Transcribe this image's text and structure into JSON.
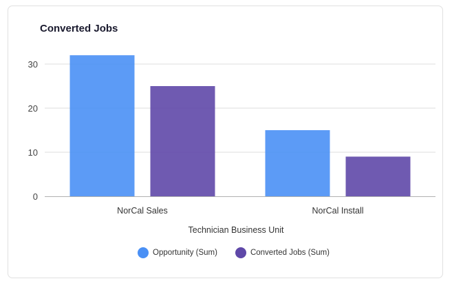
{
  "chart_data": {
    "type": "bar",
    "title": "Converted Jobs",
    "xlabel": "Technician Business Unit",
    "ylabel": "",
    "categories": [
      "NorCal Sales",
      "NorCal Install"
    ],
    "series": [
      {
        "name": "Opportunity (Sum)",
        "values": [
          32,
          15
        ],
        "color": "#4a90f5"
      },
      {
        "name": "Converted Jobs (Sum)",
        "values": [
          25,
          9
        ],
        "color": "#5f48a8"
      }
    ],
    "ylim": [
      0,
      32
    ],
    "yticks": [
      0,
      10,
      20,
      30
    ],
    "grid": true,
    "legend": "bottom-center"
  }
}
